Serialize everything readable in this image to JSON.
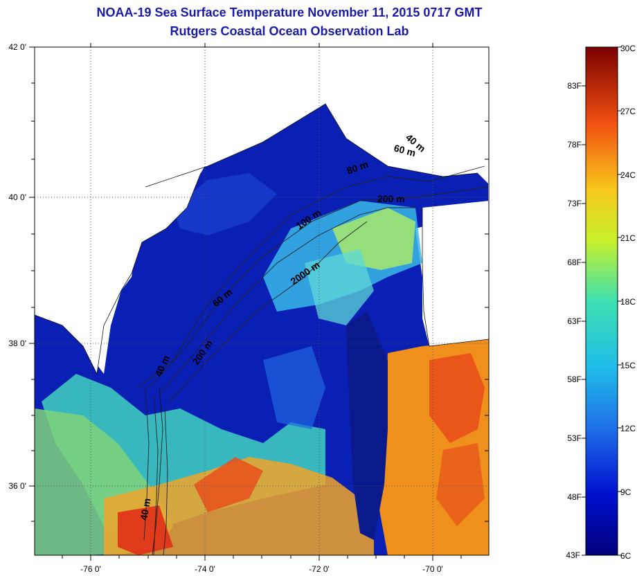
{
  "title": {
    "line1": "NOAA-19 Sea Surface Temperature November 11, 2015 0717 GMT",
    "line2": "Rutgers Coastal Ocean Observation Lab"
  },
  "map": {
    "lat_labels": [
      "42 0'",
      "40 0'",
      "38 0'",
      "36 0'"
    ],
    "lon_labels": [
      "-76 0'",
      "-74 0'",
      "-72 0'",
      "-70 0'"
    ],
    "isobath_labels": [
      "40 m",
      "60 m",
      "80 m",
      "200 m",
      "100 m",
      "60 m",
      "2000 m",
      "200 m",
      "40 m",
      "40 m"
    ]
  },
  "colorbar": {
    "min_c": 6,
    "max_c": 30,
    "celsius_labels": [
      "30C",
      "27C",
      "24C",
      "21C",
      "18C",
      "15C",
      "12C",
      "9C",
      "6C"
    ],
    "fahrenheit_labels": [
      "83F",
      "78F",
      "73F",
      "68F",
      "63F",
      "58F",
      "53F",
      "48F",
      "43F"
    ]
  },
  "colors": {
    "title": "#1a1aa8",
    "land": "#ffffff",
    "cold": "#0a1a9a",
    "mid": "#29d6d6",
    "warm": "#e8c81f",
    "hot": "#e0441c"
  }
}
